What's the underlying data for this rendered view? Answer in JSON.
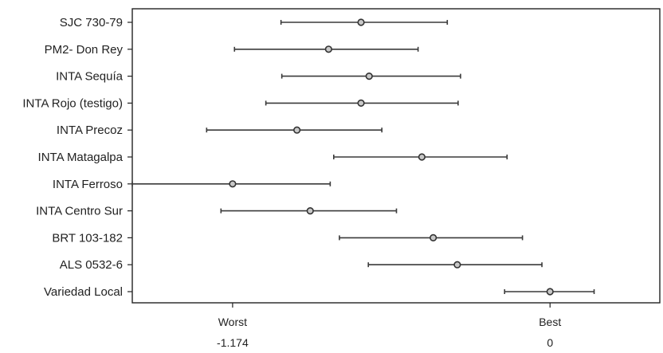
{
  "chart_data": {
    "type": "scatter",
    "categories": [
      "SJC 730-79",
      "PM2- Don Rey",
      "INTA Sequía",
      "INTA Rojo (testigo)",
      "INTA Precoz",
      "INTA Matagalpa",
      "INTA Ferroso",
      "INTA Centro Sur",
      "BRT 103-182",
      "ALS 0532-6",
      "Variedad Local"
    ],
    "series": [
      {
        "estimate": [
          -0.699,
          -0.819,
          -0.669,
          -0.699,
          -0.936,
          -0.474,
          -1.174,
          -0.887,
          -0.432,
          -0.343,
          0.0
        ],
        "lower": [
          -0.995,
          -1.167,
          -0.992,
          -1.051,
          -1.27,
          -0.8,
          -1.545,
          -1.217,
          -0.779,
          -0.672,
          -0.168
        ],
        "upper": [
          -0.38,
          -0.488,
          -0.331,
          -0.34,
          -0.622,
          -0.159,
          -0.813,
          -0.568,
          -0.102,
          -0.03,
          0.163
        ]
      }
    ],
    "xlim": [
      -1.545,
      0.406
    ],
    "xticks": [
      {
        "label": "Worst",
        "value_label": "-1.174",
        "x": -1.174
      },
      {
        "label": "Best",
        "value_label": "0",
        "x": 0.0
      }
    ],
    "title": "",
    "xlabel": "",
    "ylabel": "",
    "grid": false,
    "legend": "none"
  }
}
